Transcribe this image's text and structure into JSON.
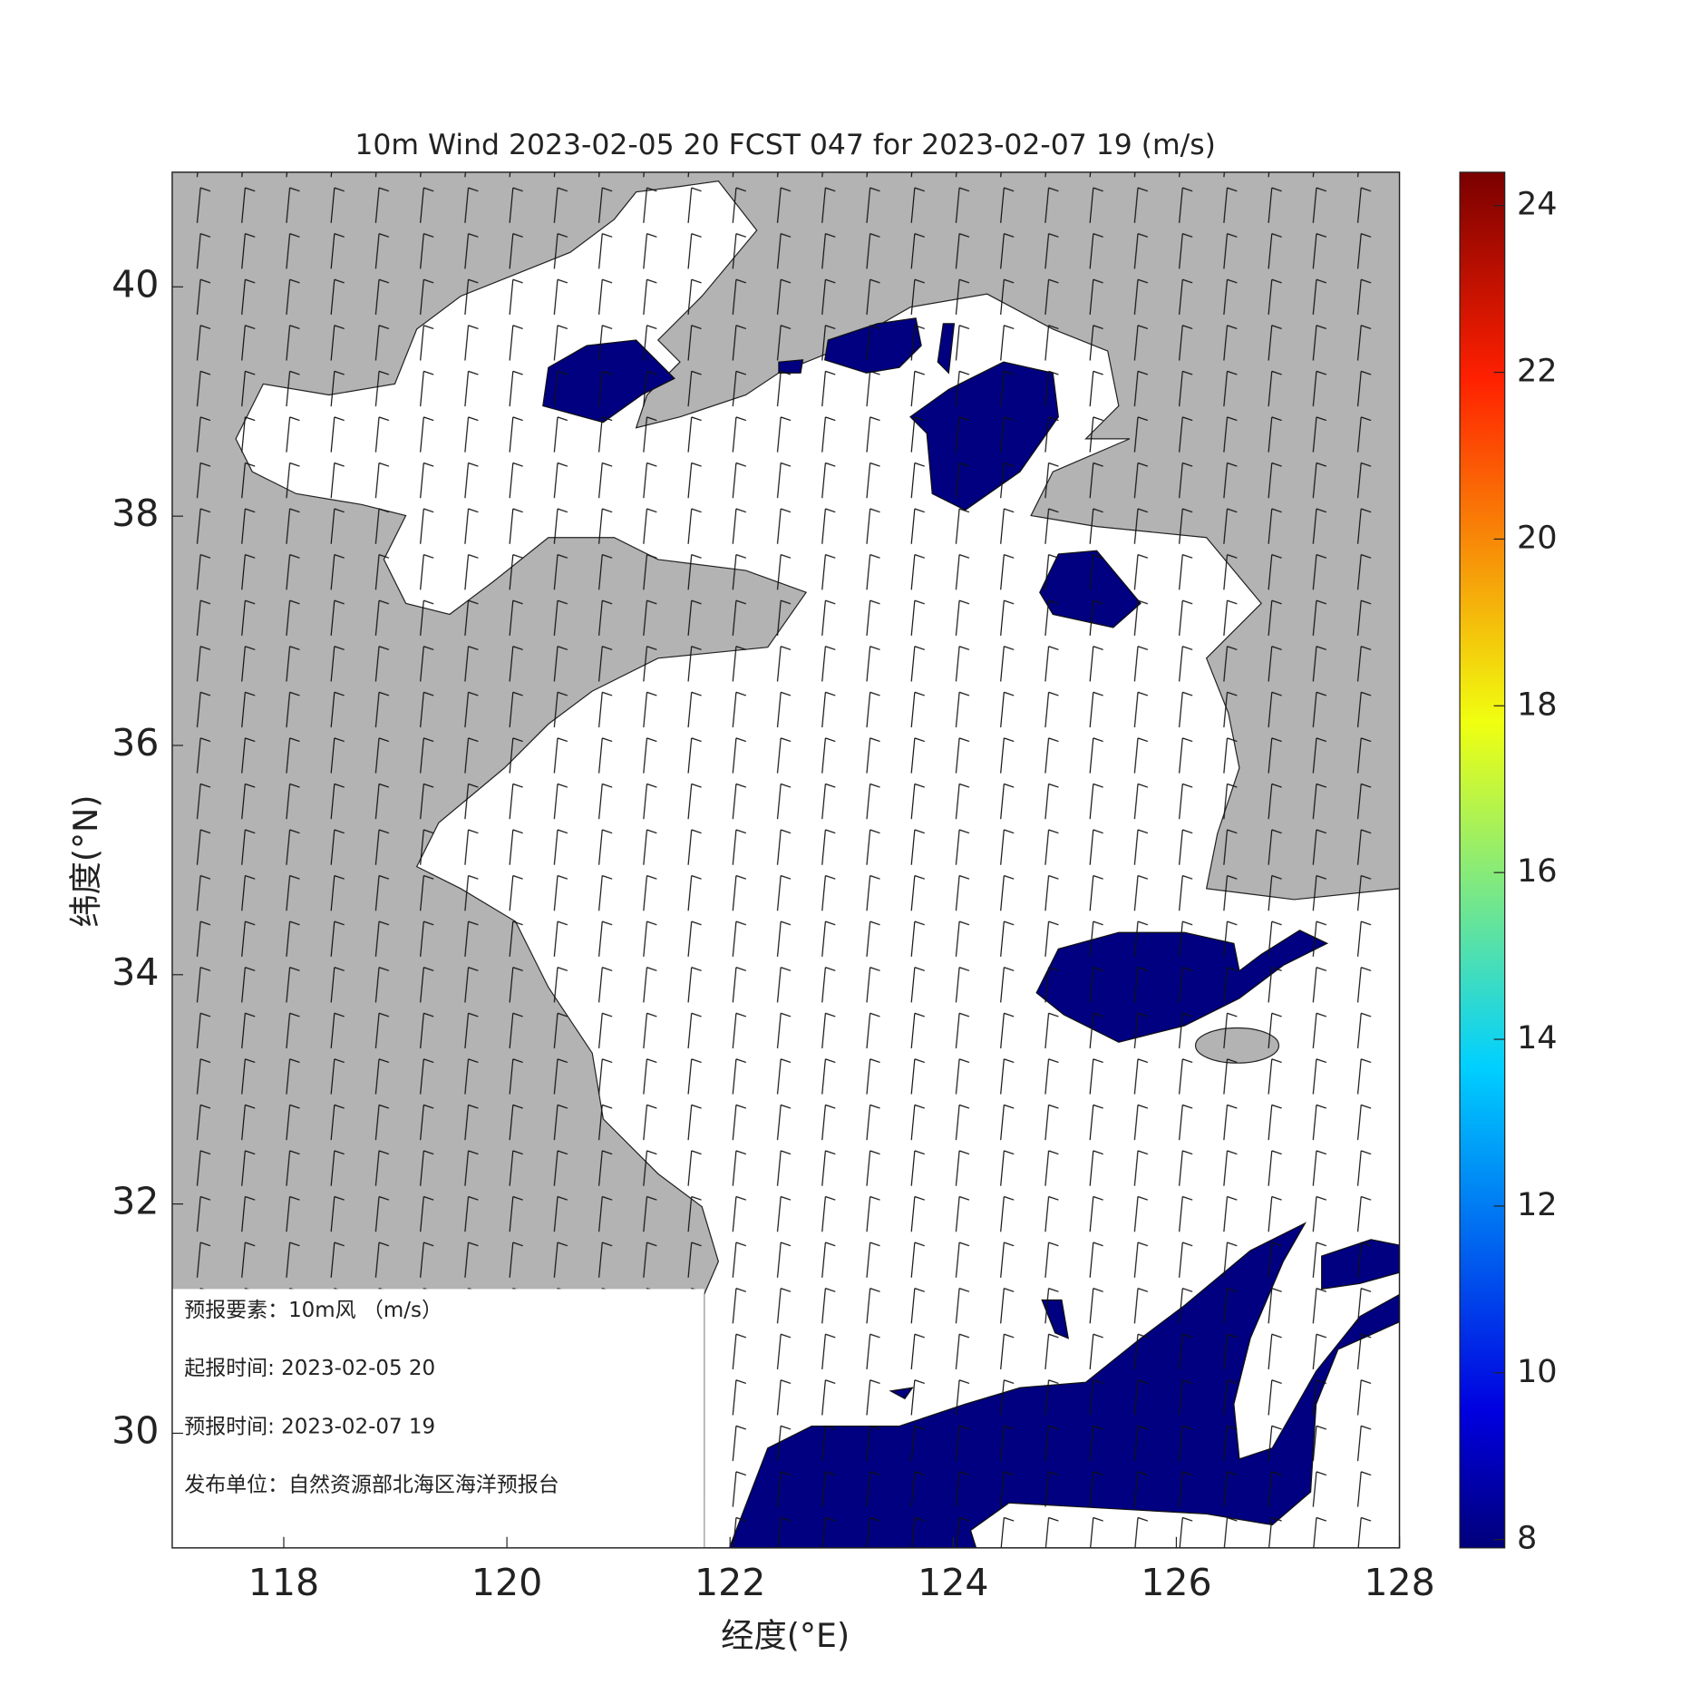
{
  "title": "10m Wind 2023-02-05 20 FCST 047 for 2023-02-07 19 (m/s)",
  "x_axis": {
    "label": "经度(°E)",
    "lim": [
      117,
      128
    ],
    "ticks": [
      118,
      120,
      122,
      124,
      126,
      128
    ]
  },
  "y_axis": {
    "label": "纬度(°N)",
    "lim": [
      29,
      41
    ],
    "ticks": [
      30,
      32,
      34,
      36,
      38,
      40
    ]
  },
  "colorbar": {
    "lim": [
      7.9,
      24.4
    ],
    "ticks": [
      8,
      10,
      12,
      14,
      16,
      18,
      20,
      22,
      24
    ]
  },
  "info_box": [
    "预报要素：10m风 （m/s）",
    "起报时间: 2023-02-05 20",
    "预报时间: 2023-02-07 19",
    "发布单位：自然资源部北海区海洋预报台"
  ]
}
